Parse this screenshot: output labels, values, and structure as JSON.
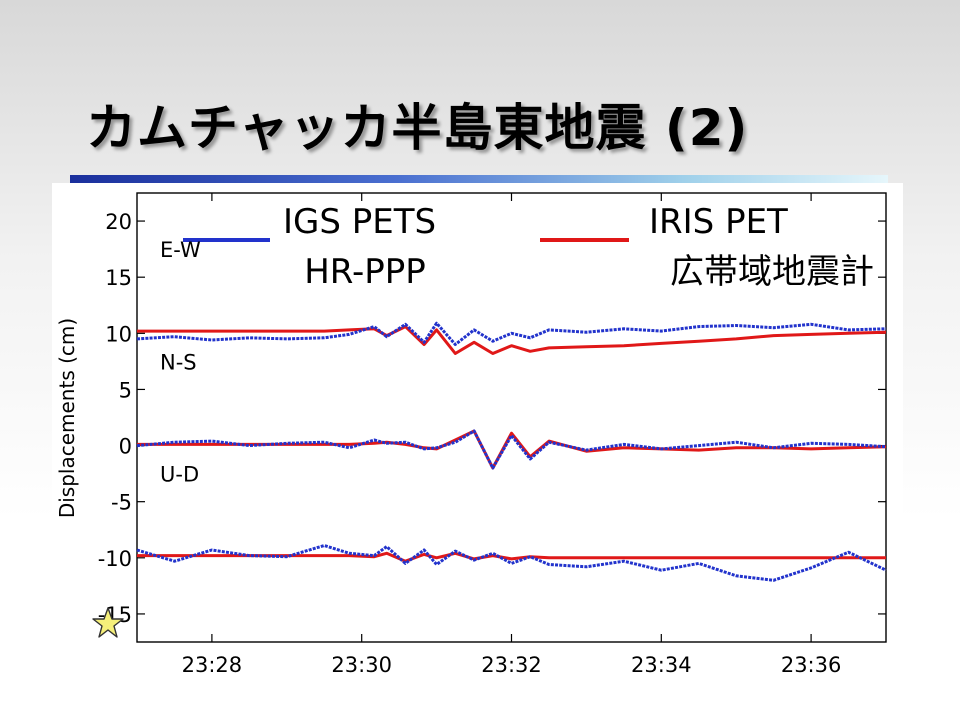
{
  "slide": {
    "title": "カムチャッカ半島東地震 (2)"
  },
  "colors": {
    "igs": "#2233cc",
    "iris": "#e01818",
    "title_rule_start": "#1a2f9c",
    "title_rule_end": "#e6f6fb",
    "star_fill": "#f5ef7a"
  },
  "icons": {
    "marker": "star-icon"
  },
  "chart_data": {
    "type": "line",
    "title": "",
    "xlabel": "",
    "ylabel": "Displacements (cm)",
    "ylim": [
      -17.5,
      22.5
    ],
    "xlim": [
      "23:27:00",
      "23:37:00"
    ],
    "x_ticks": [
      "23:28",
      "23:30",
      "23:32",
      "23:34",
      "23:36"
    ],
    "y_ticks": [
      "20",
      "15",
      "10",
      "5",
      "0",
      "-5",
      "-10",
      "-15"
    ],
    "y_tick_values": [
      20,
      15,
      10,
      5,
      0,
      -5,
      -10,
      -15
    ],
    "grid": false,
    "legend": [
      {
        "line1": "IGS PETS",
        "line2": "HR-PPP",
        "color_key": "igs"
      },
      {
        "line1": "IRIS PET",
        "line2": "広帯域地震計",
        "color_key": "iris"
      }
    ],
    "component_labels": [
      {
        "text": "E-W",
        "y": 17.5
      },
      {
        "text": "N-S",
        "y": 7.5
      },
      {
        "text": "U-D",
        "y": -2.5
      }
    ],
    "x": [
      "23:27:00",
      "23:27:30",
      "23:28:00",
      "23:28:30",
      "23:29:00",
      "23:29:30",
      "23:29:50",
      "23:30:10",
      "23:30:20",
      "23:30:35",
      "23:30:50",
      "23:31:00",
      "23:31:15",
      "23:31:30",
      "23:31:45",
      "23:32:00",
      "23:32:15",
      "23:32:30",
      "23:33:00",
      "23:33:30",
      "23:34:00",
      "23:34:30",
      "23:35:00",
      "23:35:30",
      "23:36:00",
      "23:36:30",
      "23:37:00"
    ],
    "series": [
      {
        "name": "IGS PETS HR-PPP",
        "component": "E-W",
        "color_key": "igs",
        "values": [
          9.5,
          9.7,
          9.4,
          9.6,
          9.5,
          9.6,
          9.9,
          10.6,
          9.7,
          10.8,
          9.2,
          10.9,
          9.0,
          10.3,
          9.3,
          10.0,
          9.6,
          10.3,
          10.1,
          10.4,
          10.2,
          10.6,
          10.7,
          10.5,
          10.8,
          10.3,
          10.4
        ]
      },
      {
        "name": "IRIS PET 広帯域地震計",
        "component": "E-W",
        "color_key": "iris",
        "values": [
          10.2,
          10.2,
          10.2,
          10.2,
          10.2,
          10.2,
          10.3,
          10.4,
          9.8,
          10.6,
          9.0,
          10.3,
          8.2,
          9.2,
          8.2,
          8.9,
          8.4,
          8.7,
          8.8,
          8.9,
          9.1,
          9.3,
          9.5,
          9.8,
          9.9,
          10.0,
          10.1
        ]
      },
      {
        "name": "IGS PETS HR-PPP",
        "component": "N-S",
        "color_key": "igs",
        "values": [
          0.0,
          0.3,
          0.4,
          0.0,
          0.2,
          0.3,
          -0.2,
          0.5,
          0.2,
          0.3,
          -0.3,
          -0.2,
          0.3,
          1.3,
          -2.0,
          0.9,
          -1.2,
          0.3,
          -0.4,
          0.1,
          -0.3,
          0.0,
          0.3,
          -0.2,
          0.2,
          0.1,
          -0.1
        ]
      },
      {
        "name": "IRIS PET 広帯域地震計",
        "component": "N-S",
        "color_key": "iris",
        "values": [
          0.1,
          0.1,
          0.1,
          0.1,
          0.1,
          0.1,
          0.1,
          0.2,
          0.3,
          0.1,
          -0.2,
          -0.3,
          0.5,
          1.3,
          -2.0,
          1.1,
          -1.0,
          0.4,
          -0.5,
          -0.2,
          -0.3,
          -0.4,
          -0.2,
          -0.2,
          -0.3,
          -0.2,
          -0.1
        ]
      },
      {
        "name": "IGS PETS HR-PPP",
        "component": "U-D",
        "color_key": "igs",
        "values": [
          -9.3,
          -10.3,
          -9.3,
          -9.8,
          -9.9,
          -8.9,
          -9.6,
          -9.8,
          -9.0,
          -10.5,
          -9.3,
          -10.6,
          -9.4,
          -10.2,
          -9.6,
          -10.5,
          -9.9,
          -10.6,
          -10.8,
          -10.3,
          -11.1,
          -10.5,
          -11.6,
          -12.0,
          -10.9,
          -9.5,
          -11.1
        ]
      },
      {
        "name": "IRIS PET 広帯域地震計",
        "component": "U-D",
        "color_key": "iris",
        "values": [
          -9.8,
          -9.8,
          -9.8,
          -9.8,
          -9.8,
          -9.8,
          -9.8,
          -9.9,
          -9.6,
          -10.3,
          -9.7,
          -10.0,
          -9.6,
          -10.1,
          -9.8,
          -10.1,
          -9.9,
          -10.0,
          -10.0,
          -10.0,
          -10.0,
          -10.0,
          -10.0,
          -10.0,
          -10.0,
          -10.0,
          -10.0
        ]
      }
    ]
  }
}
